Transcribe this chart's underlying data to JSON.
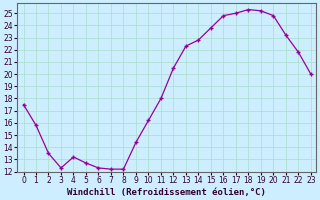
{
  "x": [
    0,
    1,
    2,
    3,
    4,
    5,
    6,
    7,
    8,
    9,
    10,
    11,
    12,
    13,
    14,
    15,
    16,
    17,
    18,
    19,
    20,
    21,
    22,
    23
  ],
  "y": [
    17.5,
    15.8,
    13.5,
    12.3,
    13.2,
    12.7,
    12.3,
    12.2,
    12.2,
    14.4,
    16.2,
    18.0,
    20.5,
    22.3,
    22.8,
    23.8,
    24.8,
    25.0,
    25.3,
    25.2,
    24.8,
    23.2,
    21.8,
    20.0
  ],
  "line_color": "#990099",
  "marker": "+",
  "markersize": 3,
  "linewidth": 0.9,
  "markeredgewidth": 1.0,
  "bg_color": "#cceeff",
  "grid_color": "#aaddcc",
  "xlim": [
    -0.5,
    23.4
  ],
  "ylim": [
    12,
    25.8
  ],
  "yticks": [
    12,
    13,
    14,
    15,
    16,
    17,
    18,
    19,
    20,
    21,
    22,
    23,
    24,
    25
  ],
  "xticks": [
    0,
    1,
    2,
    3,
    4,
    5,
    6,
    7,
    8,
    9,
    10,
    11,
    12,
    13,
    14,
    15,
    16,
    17,
    18,
    19,
    20,
    21,
    22,
    23
  ],
  "xlabel": "Windchill (Refroidissement éolien,°C)",
  "xlabel_fontsize": 6.5,
  "tick_fontsize": 5.5,
  "spine_color": "#666666"
}
